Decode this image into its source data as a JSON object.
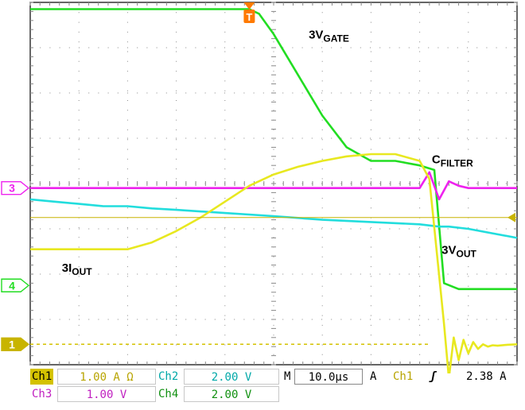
{
  "chart_data": {
    "type": "line",
    "title": "",
    "xlabel": "",
    "ylabel": "",
    "grid": true,
    "divisions": {
      "x": 10,
      "y": 8
    },
    "xlim": [
      0,
      100
    ],
    "ylim": [
      -4,
      4
    ],
    "x_unit": "µs",
    "y_unit": "div",
    "series": [
      {
        "name": "3V_GATE",
        "color": "#22dd22",
        "x": [
          0,
          45,
          47,
          50,
          55,
          60,
          65,
          70,
          75,
          80,
          83,
          85,
          88,
          90,
          95,
          100
        ],
        "y": [
          3.85,
          3.85,
          3.75,
          3.3,
          2.4,
          1.5,
          0.8,
          0.5,
          0.5,
          0.4,
          0.3,
          -2.2,
          -2.33,
          -2.33,
          -2.33,
          -2.33
        ]
      },
      {
        "name": "C_FILTER",
        "color": "#ee22ee",
        "x": [
          0,
          10,
          20,
          30,
          40,
          50,
          60,
          70,
          80,
          82,
          84,
          86,
          88,
          90,
          100
        ],
        "y": [
          -0.1,
          -0.1,
          -0.1,
          -0.1,
          -0.1,
          -0.1,
          -0.1,
          -0.1,
          -0.1,
          0.25,
          -0.35,
          0.05,
          -0.05,
          -0.1,
          -0.1
        ]
      },
      {
        "name": "3V_OUT",
        "color": "#22dddd",
        "x": [
          0,
          5,
          10,
          15,
          20,
          25,
          30,
          40,
          50,
          60,
          70,
          80,
          84,
          86,
          90,
          100
        ],
        "y": [
          -0.35,
          -0.4,
          -0.45,
          -0.5,
          -0.5,
          -0.55,
          -0.58,
          -0.65,
          -0.72,
          -0.8,
          -0.85,
          -0.9,
          -0.95,
          -0.95,
          -1.0,
          -1.2
        ]
      },
      {
        "name": "3I_OUT",
        "color": "#e8e820",
        "x": [
          0,
          20,
          25,
          30,
          35,
          40,
          45,
          50,
          55,
          60,
          65,
          70,
          75,
          80,
          82,
          85,
          86,
          87,
          88,
          89,
          90,
          91,
          92,
          93,
          94,
          95,
          96,
          98,
          100
        ],
        "y": [
          -1.45,
          -1.45,
          -1.3,
          -1.05,
          -0.75,
          -0.4,
          -0.05,
          0.2,
          0.37,
          0.5,
          0.6,
          0.65,
          0.65,
          0.5,
          0.1,
          -3.1,
          -4.3,
          -3.4,
          -3.9,
          -3.45,
          -3.75,
          -3.5,
          -3.65,
          -3.55,
          -3.6,
          -3.57,
          -3.58,
          -3.56,
          -3.55
        ]
      }
    ],
    "ch1_trace": {
      "x": [
        0,
        82
      ],
      "y": [
        -3.55,
        -3.55
      ],
      "style": "dashed"
    },
    "trigger_level": -0.75,
    "channel_markers": [
      {
        "label": "3",
        "color": "#ee22ee",
        "level": -0.1
      },
      {
        "label": "4",
        "color": "#22dd22",
        "level": -2.25
      },
      {
        "label": "1",
        "color": "#c8b400",
        "level": -3.55
      }
    ],
    "trigger_marker": {
      "label": "T",
      "position": 45
    },
    "annotations": [
      {
        "main": "3V",
        "sub": "GATE",
        "x": 57.2,
        "y": 3.2
      },
      {
        "main": "C",
        "sub": "FILTER",
        "x": 82.5,
        "y": 0.45
      },
      {
        "main": "3V",
        "sub": "OUT",
        "x": 84.5,
        "y": -1.55
      },
      {
        "main": "3I",
        "sub": "OUT",
        "x": 6.5,
        "y": -1.95
      }
    ]
  },
  "status_bar": {
    "row1": {
      "ch1": "Ch1",
      "ch1_value": "1.00 A Ω",
      "ch2": "Ch2",
      "ch2_value": "2.00 V",
      "time": "M",
      "time_value": "10.0µs",
      "trigger_mode": "A",
      "trigger_source": "Ch1",
      "trigger_slope": "ʃ",
      "trigger_value": "2.38 A"
    },
    "row2": {
      "ch3": "Ch3",
      "ch3_value": "1.00 V",
      "ch4": "Ch4",
      "ch4_value": "2.00 V"
    }
  },
  "colors": {
    "ch1": "#c8b400",
    "ch2": "#00b0b0",
    "ch3": "#c020c0",
    "ch4": "#109010"
  }
}
